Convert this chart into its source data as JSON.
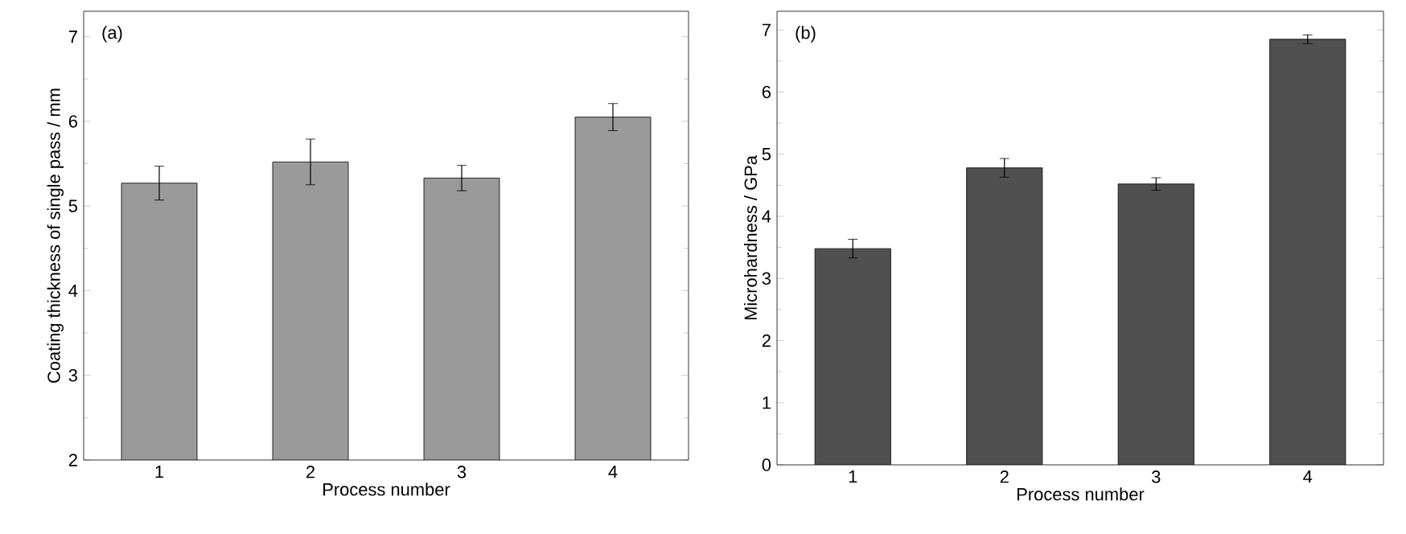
{
  "chart_data": [
    {
      "type": "bar",
      "xlabel": "Process number",
      "ylabel": "Coating thickness of single pass / mm",
      "annotations": [
        "(a)"
      ],
      "categories": [
        "1",
        "2",
        "3",
        "4"
      ],
      "values": [
        5.27,
        5.52,
        5.33,
        6.05
      ],
      "errors": [
        0.2,
        0.27,
        0.15,
        0.16
      ],
      "color": "#9a9a9a",
      "ylim": [
        2,
        7.3
      ],
      "yticks": [
        2,
        3,
        4,
        5,
        6,
        7
      ]
    },
    {
      "type": "bar",
      "xlabel": "Process number",
      "ylabel": "Microhardness / GPa",
      "annotations": [
        "(b)"
      ],
      "categories": [
        "1",
        "2",
        "3",
        "4"
      ],
      "values": [
        3.48,
        4.78,
        4.52,
        6.85
      ],
      "errors": [
        0.15,
        0.15,
        0.1,
        0.07
      ],
      "color": "#505050",
      "ylim": [
        0,
        7.3
      ],
      "yticks": [
        0,
        1,
        2,
        3,
        4,
        5,
        6,
        7
      ]
    }
  ]
}
